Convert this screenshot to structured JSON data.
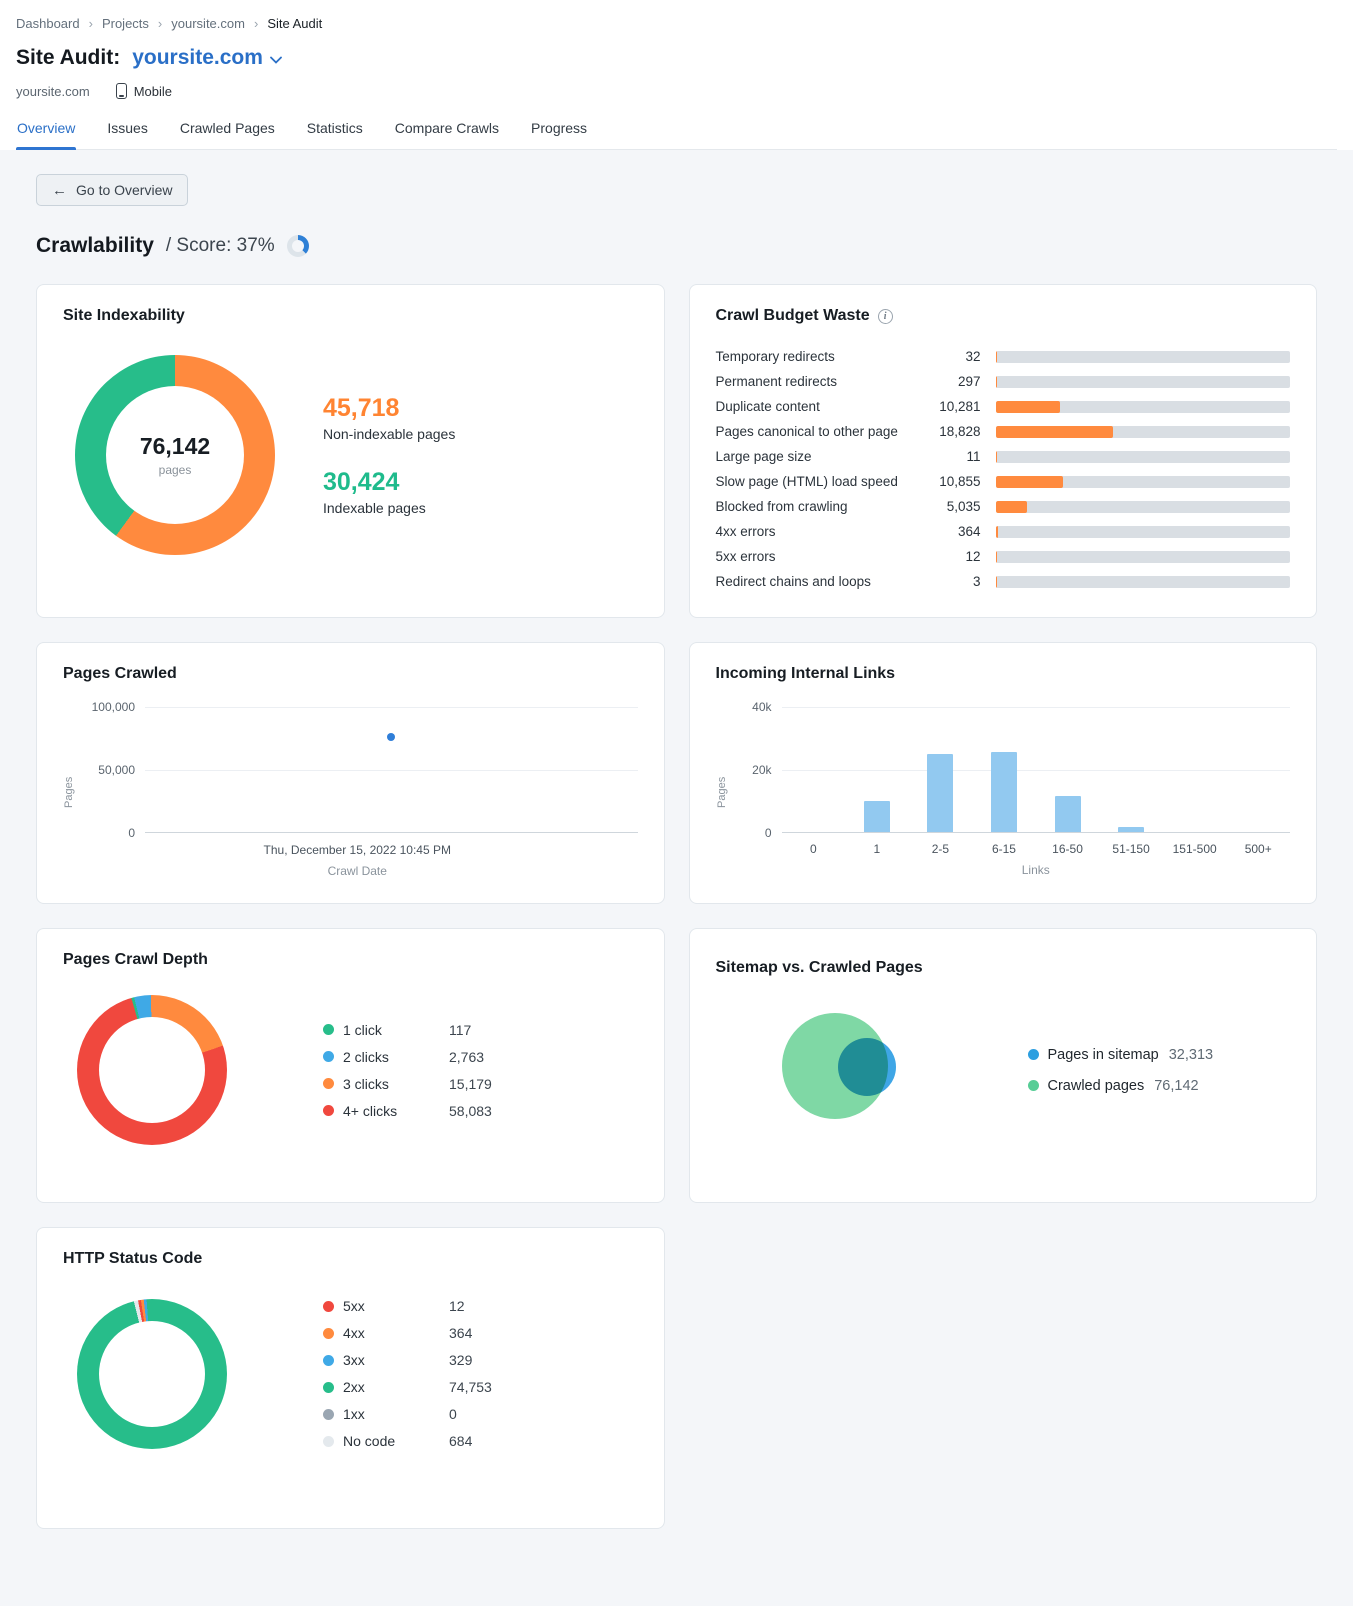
{
  "breadcrumb": {
    "separator": "›",
    "items": [
      {
        "label": "Dashboard",
        "current": false
      },
      {
        "label": "Projects",
        "current": false
      },
      {
        "label": "yoursite.com",
        "current": false
      },
      {
        "label": "Site Audit",
        "current": true
      }
    ]
  },
  "header": {
    "title": "Site Audit:",
    "project": "yoursite.com",
    "domain": "yoursite.com",
    "device": "Mobile"
  },
  "tabs": [
    {
      "label": "Overview",
      "active": true
    },
    {
      "label": "Issues",
      "active": false
    },
    {
      "label": "Crawled Pages",
      "active": false
    },
    {
      "label": "Statistics",
      "active": false
    },
    {
      "label": "Compare Crawls",
      "active": false
    },
    {
      "label": "Progress",
      "active": false
    }
  ],
  "toolbar": {
    "back_label": "Go to Overview",
    "back_arrow": "←",
    "info_glyph": "i"
  },
  "page": {
    "title": "Crawlability",
    "score_label": "/ Score: 37%",
    "score_pct": 37
  },
  "colors": {
    "accent_blue": "#2f75d1",
    "orange": "#ff8a3e",
    "green": "#27bd8a",
    "blue": "#3fa9e6",
    "red": "#f0483e",
    "gray": "#9aa6b2",
    "light_gray": "#e4e9ed",
    "bar_blue": "#92c9f0"
  },
  "chart_data": [
    {
      "id": "site_indexability",
      "type": "pie",
      "title": "Site Indexability",
      "center_value": "76,142",
      "center_label": "pages",
      "slices": [
        {
          "label": "Non-indexable pages",
          "value": 45718,
          "display": "45,718",
          "color": "#ff8a3e"
        },
        {
          "label": "Indexable pages",
          "value": 30424,
          "display": "30,424",
          "color": "#27bd8a"
        }
      ]
    },
    {
      "id": "crawl_budget_waste",
      "type": "bar",
      "title": "Crawl Budget Waste",
      "rows": [
        {
          "label": "Temporary redirects",
          "value": 32,
          "display": "32"
        },
        {
          "label": "Permanent redirects",
          "value": 297,
          "display": "297"
        },
        {
          "label": "Duplicate content",
          "value": 10281,
          "display": "10,281"
        },
        {
          "label": "Pages canonical to other page",
          "value": 18828,
          "display": "18,828"
        },
        {
          "label": "Large page size",
          "value": 11,
          "display": "11"
        },
        {
          "label": "Slow page (HTML) load speed",
          "value": 10855,
          "display": "10,855"
        },
        {
          "label": "Blocked from crawling",
          "value": 5035,
          "display": "5,035"
        },
        {
          "label": "4xx errors",
          "value": 364,
          "display": "364"
        },
        {
          "label": "5xx errors",
          "value": 12,
          "display": "12"
        },
        {
          "label": "Redirect chains and loops",
          "value": 3,
          "display": "3"
        }
      ]
    },
    {
      "id": "pages_crawled",
      "type": "scatter",
      "title": "Pages Crawled",
      "ylabel": "Pages",
      "xlabel": "Crawl Date",
      "yticks": [
        "100,000",
        "50,000",
        "0"
      ],
      "ylim": [
        0,
        100000
      ],
      "points": [
        {
          "x_label": "Thu, December 15, 2022 10:45 PM",
          "y": 76142
        }
      ]
    },
    {
      "id": "incoming_internal_links",
      "type": "bar",
      "title": "Incoming Internal Links",
      "ylabel": "Pages",
      "xlabel": "Links",
      "yticks": [
        "40k",
        "20k",
        "0"
      ],
      "ylim": [
        0,
        40000
      ],
      "categories": [
        "0",
        "1",
        "2-5",
        "6-15",
        "16-50",
        "51-150",
        "151-500",
        "500+"
      ],
      "values": [
        0,
        10000,
        25000,
        25500,
        11500,
        1500,
        0,
        0
      ]
    },
    {
      "id": "pages_crawl_depth",
      "type": "pie",
      "title": "Pages Crawl Depth",
      "slices": [
        {
          "label": "1 click",
          "value": 117,
          "display": "117",
          "color": "#27bd8a"
        },
        {
          "label": "2 clicks",
          "value": 2763,
          "display": "2,763",
          "color": "#3fa9e6"
        },
        {
          "label": "3 clicks",
          "value": 15179,
          "display": "15,179",
          "color": "#ff8a3e"
        },
        {
          "label": "4+ clicks",
          "value": 58083,
          "display": "58,083",
          "color": "#f0483e"
        }
      ]
    },
    {
      "id": "sitemap_vs_crawled",
      "type": "venn",
      "title": "Sitemap vs. Crawled Pages",
      "sets": [
        {
          "label": "Pages in sitemap",
          "value": 32313,
          "display": "32,313",
          "color": "#2d9fe0"
        },
        {
          "label": "Crawled pages",
          "value": 76142,
          "display": "76,142",
          "color": "#57cd96"
        }
      ]
    },
    {
      "id": "http_status_code",
      "type": "pie",
      "title": "HTTP Status Code",
      "slices": [
        {
          "label": "5xx",
          "value": 12,
          "display": "12",
          "color": "#f0483e"
        },
        {
          "label": "4xx",
          "value": 364,
          "display": "364",
          "color": "#ff8a3e"
        },
        {
          "label": "3xx",
          "value": 329,
          "display": "329",
          "color": "#3fa9e6"
        },
        {
          "label": "2xx",
          "value": 74753,
          "display": "74,753",
          "color": "#27bd8a"
        },
        {
          "label": "1xx",
          "value": 0,
          "display": "0",
          "color": "#9aa6b2"
        },
        {
          "label": "No code",
          "value": 684,
          "display": "684",
          "color": "#e4e9ed"
        }
      ]
    }
  ]
}
